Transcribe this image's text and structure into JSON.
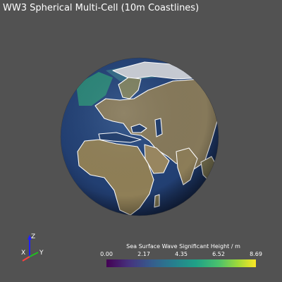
{
  "window": {
    "title": "WW3 Spherical Multi-Cell (10m Coastlines)",
    "background": "#525252"
  },
  "scene": {
    "globe": {
      "ocean_color": "#1f3e6e",
      "land_color": "#8a7a52",
      "coastline_color": "#ffffff"
    }
  },
  "axes": {
    "z_label": "Z",
    "x_label": "X",
    "y_label": "Y",
    "z_color": "#2020ff",
    "y_color": "#20c020",
    "x_color": "#ff4040"
  },
  "colorbar": {
    "title": "Sea Surface Wave Significant Height / m",
    "ticks": [
      "0.00",
      "2.17",
      "4.35",
      "6.52",
      "8.69"
    ],
    "range": [
      0.0,
      8.69
    ],
    "colormap": "viridis"
  }
}
